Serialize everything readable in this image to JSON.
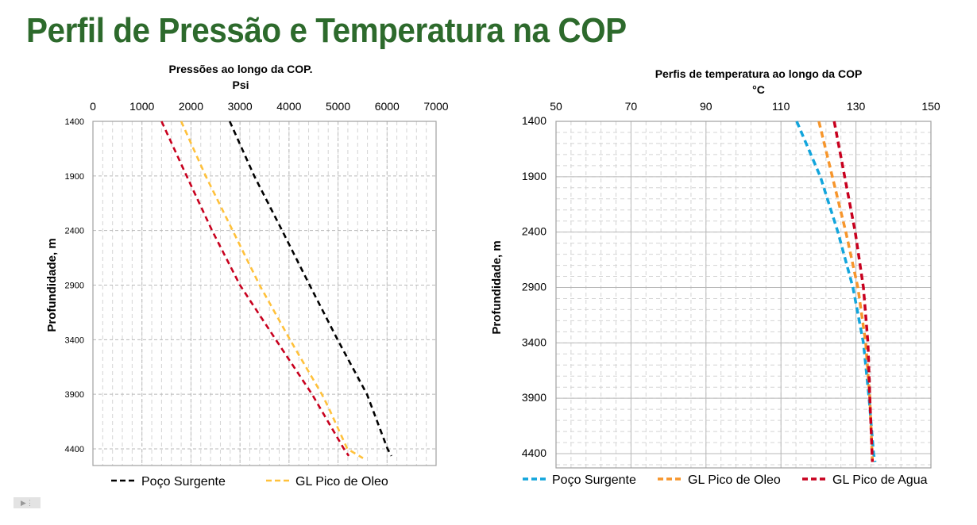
{
  "page_title": "Perfil de Pressão e Temperatura na COP",
  "play_button_icon": "play-icon",
  "chart_data": [
    {
      "type": "line",
      "title": "Pressões ao longo da COP.",
      "xlabel": "Psi",
      "ylabel": "Profundidade, m",
      "xlim": [
        0,
        7000
      ],
      "ylim": [
        1400,
        4400
      ],
      "y_inverted": true,
      "x_axis_position": "top",
      "x_ticks": [
        0,
        1000,
        2000,
        3000,
        4000,
        5000,
        6000,
        7000
      ],
      "y_ticks": [
        1400,
        1900,
        2400,
        2900,
        3400,
        3900,
        4400
      ],
      "grid": true,
      "legend_position": "bottom",
      "series": [
        {
          "name": "Poço Surgente",
          "color": "#000000",
          "points": [
            [
              2790,
              1400
            ],
            [
              3290,
              1900
            ],
            [
              3860,
              2400
            ],
            [
              4420,
              2900
            ],
            [
              4990,
              3400
            ],
            [
              5590,
              3900
            ],
            [
              6010,
              4400
            ],
            [
              6090,
              4465
            ]
          ]
        },
        {
          "name": "GL Pico de Oleo",
          "color": "#ffc13b",
          "points": [
            [
              1800,
              1400
            ],
            [
              2300,
              1900
            ],
            [
              2850,
              2400
            ],
            [
              3400,
              2900
            ],
            [
              4020,
              3400
            ],
            [
              4670,
              3900
            ],
            [
              4800,
              4015
            ],
            [
              5190,
              4400
            ],
            [
              5510,
              4485
            ]
          ]
        },
        {
          "name": "",
          "color": "#c8001e",
          "in_legend": false,
          "points": [
            [
              1400,
              1400
            ],
            [
              1910,
              1900
            ],
            [
              2430,
              2400
            ],
            [
              3000,
              2900
            ],
            [
              3730,
              3400
            ],
            [
              4470,
              3900
            ],
            [
              5120,
              4400
            ],
            [
              5220,
              4465
            ]
          ]
        }
      ]
    },
    {
      "type": "line",
      "title": "Perfis de temperatura ao longo da COP",
      "xlabel": "°C",
      "ylabel": "Profundidade, m",
      "xlim": [
        50,
        150
      ],
      "ylim": [
        1400,
        4400
      ],
      "y_inverted": true,
      "x_axis_position": "top",
      "x_ticks": [
        50,
        70,
        90,
        110,
        130,
        150
      ],
      "y_ticks": [
        1400,
        1900,
        2400,
        2900,
        3400,
        3900,
        4400
      ],
      "grid": true,
      "legend_position": "bottom",
      "series": [
        {
          "name": "Poço Surgente",
          "color": "#12a5dc",
          "points": [
            [
              114.2,
              1400
            ],
            [
              120.5,
              1900
            ],
            [
              125.2,
              2400
            ],
            [
              129.2,
              2900
            ],
            [
              132.0,
              3400
            ],
            [
              133.5,
              3900
            ],
            [
              134.7,
              4400
            ],
            [
              135.1,
              4475
            ]
          ]
        },
        {
          "name": "GL Pico de Oleo",
          "color": "#f7962c",
          "points": [
            [
              120.1,
              1400
            ],
            [
              123.7,
              1900
            ],
            [
              127.3,
              2400
            ],
            [
              130.5,
              2900
            ],
            [
              132.6,
              3400
            ],
            [
              133.7,
              3900
            ],
            [
              134.3,
              4400
            ],
            [
              134.4,
              4475
            ]
          ]
        },
        {
          "name": "GL Pico de Agua",
          "color": "#c8001e",
          "points": [
            [
              124.2,
              1400
            ],
            [
              127.0,
              1900
            ],
            [
              129.8,
              2400
            ],
            [
              132.0,
              2900
            ],
            [
              133.2,
              3400
            ],
            [
              133.7,
              3900
            ],
            [
              134.3,
              4400
            ],
            [
              134.4,
              4475
            ]
          ]
        }
      ]
    }
  ]
}
